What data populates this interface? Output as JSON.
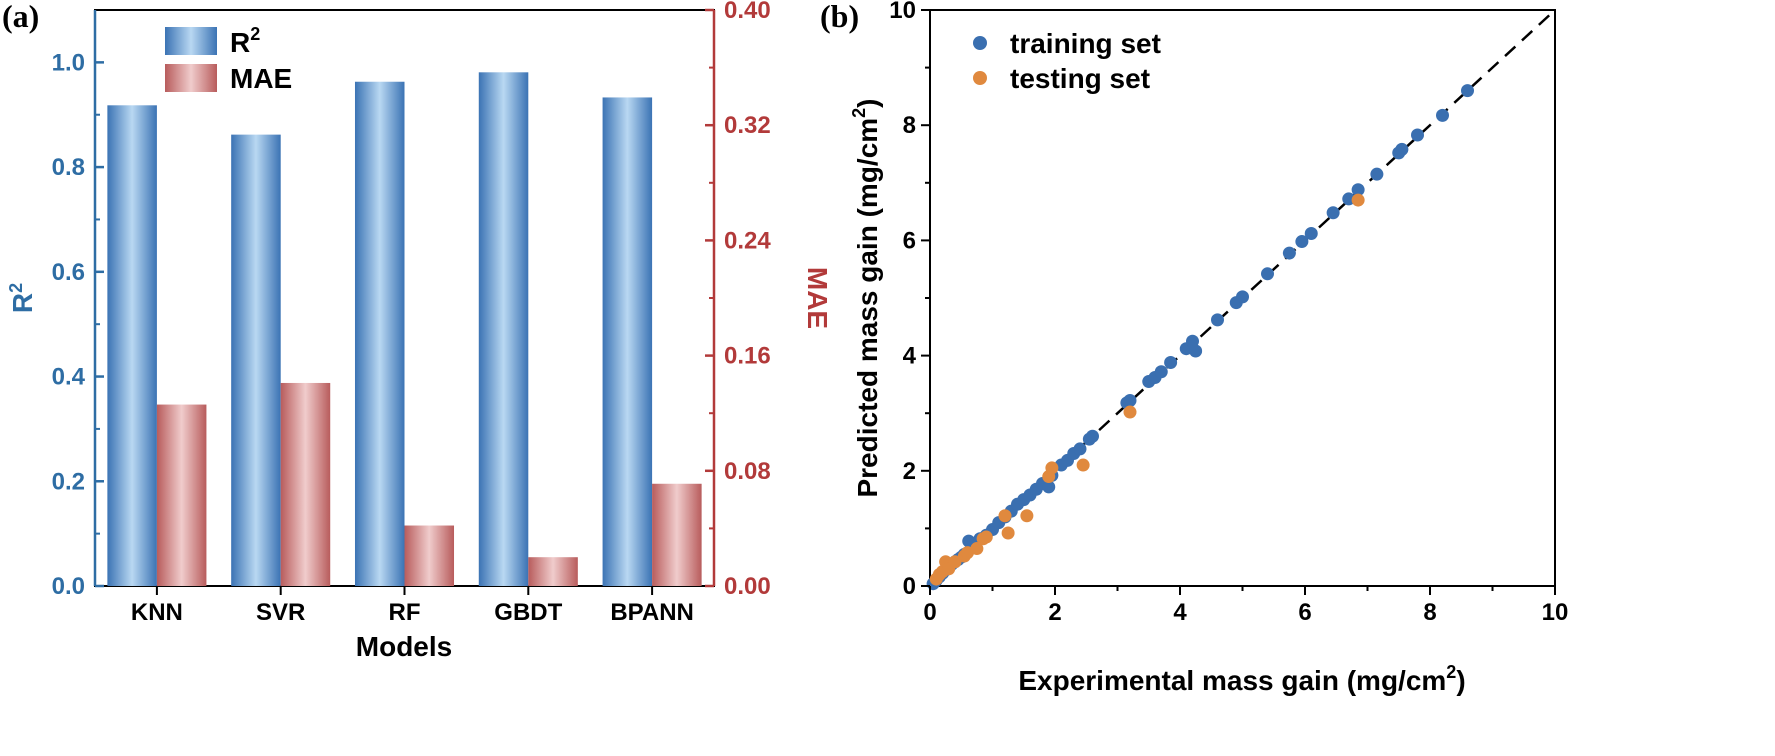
{
  "chart_data": [
    {
      "panel": "(a)",
      "type": "bar",
      "xlabel": "Models",
      "categories": [
        "KNN",
        "SVR",
        "RF",
        "GBDT",
        "BPANN"
      ],
      "series": [
        {
          "name": "R²",
          "axis": "left",
          "values": [
            0.918,
            0.862,
            0.963,
            0.981,
            0.933
          ]
        },
        {
          "name": "MAE",
          "axis": "right",
          "values": [
            0.126,
            0.141,
            0.042,
            0.02,
            0.071
          ]
        }
      ],
      "y_left": {
        "label": "R",
        "label_sup": "2",
        "lim": [
          0,
          1.1
        ],
        "ticks": [
          "0.0",
          "0.2",
          "0.4",
          "0.6",
          "0.8",
          "1.0"
        ]
      },
      "y_right": {
        "label": "MAE",
        "lim": [
          0,
          0.4
        ],
        "ticks": [
          "0.00",
          "0.08",
          "0.16",
          "0.24",
          "0.32",
          "0.40"
        ]
      },
      "legend": {
        "placement": "top-left",
        "items": [
          {
            "label": "R",
            "sup": "2"
          },
          {
            "label": "MAE",
            "sup": ""
          }
        ]
      },
      "colors": {
        "r2": "#3b73b4",
        "r2_light": "#b9d8f2",
        "mae": "#b85c5c",
        "mae_light": "#f0cccc",
        "left_axis": "#2e6da4",
        "right_axis": "#b23a3a"
      }
    },
    {
      "panel": "(b)",
      "type": "scatter",
      "xlabel": "Experimental mass gain (mg/cm",
      "xlabel_sup": "2",
      "xlabel_end": ")",
      "ylabel": "Predicted mass gain (mg/cm",
      "ylabel_sup": "2",
      "ylabel_end": ")",
      "xlim": [
        0,
        10
      ],
      "ylim": [
        0,
        10
      ],
      "xticks": [
        "0",
        "2",
        "4",
        "6",
        "8",
        "10"
      ],
      "yticks": [
        "0",
        "2",
        "4",
        "6",
        "8",
        "10"
      ],
      "reference_line": "y = x (dashed)",
      "legend": {
        "placement": "top-left"
      },
      "series": [
        {
          "name": "training set",
          "color": "#3a6fb0",
          "points": [
            [
              0.05,
              0.04
            ],
            [
              0.1,
              0.1
            ],
            [
              0.15,
              0.16
            ],
            [
              0.2,
              0.22
            ],
            [
              0.25,
              0.28
            ],
            [
              0.3,
              0.35
            ],
            [
              0.35,
              0.38
            ],
            [
              0.4,
              0.42
            ],
            [
              0.45,
              0.46
            ],
            [
              0.5,
              0.5
            ],
            [
              0.55,
              0.55
            ],
            [
              0.62,
              0.78
            ],
            [
              0.7,
              0.74
            ],
            [
              0.8,
              0.82
            ],
            [
              0.9,
              0.88
            ],
            [
              1.0,
              0.98
            ],
            [
              1.1,
              1.1
            ],
            [
              1.2,
              1.2
            ],
            [
              1.3,
              1.3
            ],
            [
              1.4,
              1.42
            ],
            [
              1.5,
              1.5
            ],
            [
              1.6,
              1.58
            ],
            [
              1.7,
              1.68
            ],
            [
              1.8,
              1.78
            ],
            [
              1.9,
              1.72
            ],
            [
              1.95,
              1.92
            ],
            [
              2.1,
              2.1
            ],
            [
              2.2,
              2.18
            ],
            [
              2.3,
              2.3
            ],
            [
              2.4,
              2.38
            ],
            [
              2.55,
              2.55
            ],
            [
              2.6,
              2.6
            ],
            [
              3.15,
              3.18
            ],
            [
              3.2,
              3.22
            ],
            [
              3.5,
              3.55
            ],
            [
              3.6,
              3.62
            ],
            [
              3.7,
              3.72
            ],
            [
              3.85,
              3.88
            ],
            [
              4.1,
              4.12
            ],
            [
              4.2,
              4.25
            ],
            [
              4.25,
              4.08
            ],
            [
              4.6,
              4.62
            ],
            [
              4.9,
              4.92
            ],
            [
              5.0,
              5.02
            ],
            [
              5.4,
              5.42
            ],
            [
              5.75,
              5.78
            ],
            [
              5.95,
              5.98
            ],
            [
              6.1,
              6.12
            ],
            [
              6.45,
              6.48
            ],
            [
              6.7,
              6.72
            ],
            [
              6.85,
              6.88
            ],
            [
              7.15,
              7.15
            ],
            [
              7.5,
              7.52
            ],
            [
              7.55,
              7.58
            ],
            [
              7.8,
              7.83
            ],
            [
              8.2,
              8.17
            ],
            [
              8.6,
              8.6
            ]
          ]
        },
        {
          "name": "testing set",
          "color": "#e0893e",
          "points": [
            [
              0.1,
              0.12
            ],
            [
              0.15,
              0.2
            ],
            [
              0.2,
              0.25
            ],
            [
              0.25,
              0.42
            ],
            [
              0.3,
              0.3
            ],
            [
              0.4,
              0.42
            ],
            [
              0.55,
              0.52
            ],
            [
              0.6,
              0.58
            ],
            [
              0.75,
              0.65
            ],
            [
              0.85,
              0.82
            ],
            [
              0.9,
              0.85
            ],
            [
              1.2,
              1.22
            ],
            [
              1.25,
              0.92
            ],
            [
              1.55,
              1.22
            ],
            [
              1.9,
              1.9
            ],
            [
              1.95,
              2.05
            ],
            [
              2.45,
              2.1
            ],
            [
              3.2,
              3.02
            ],
            [
              6.85,
              6.7
            ]
          ]
        }
      ]
    }
  ]
}
